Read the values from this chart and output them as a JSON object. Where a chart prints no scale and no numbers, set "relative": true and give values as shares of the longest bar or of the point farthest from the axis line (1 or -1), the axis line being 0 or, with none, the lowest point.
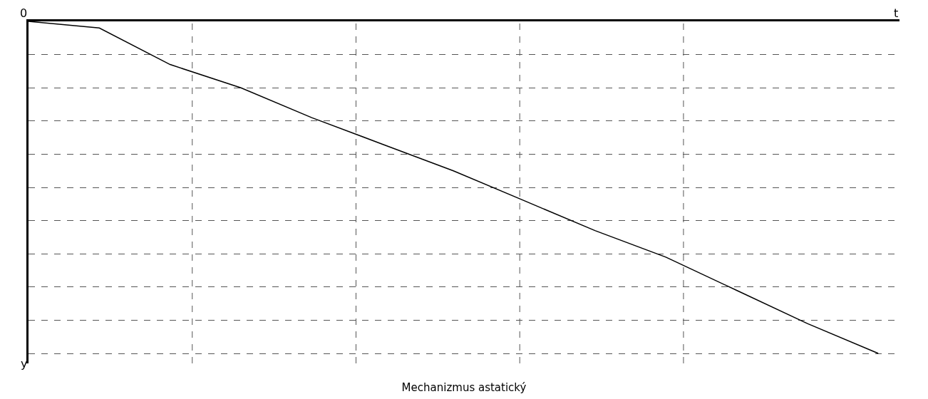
{
  "chart_data": {
    "type": "line",
    "title": "Mechanizmus astatický",
    "xlabel": "t",
    "ylabel": "y",
    "annotations": [
      "0"
    ],
    "relative": true,
    "categories": [
      null,
      null,
      null,
      null,
      null,
      null,
      null,
      null,
      null,
      null,
      null,
      null,
      null
    ],
    "series": [
      {
        "color": "#000000",
        "values": [
          0,
          -0.02,
          -0.13,
          -0.2,
          -0.29,
          -0.37,
          -0.45,
          -0.54,
          -0.63,
          -0.71,
          -0.81,
          -0.91,
          -1
        ]
      }
    ],
    "grid": true,
    "marker": "none",
    "line_style": "solid"
  }
}
